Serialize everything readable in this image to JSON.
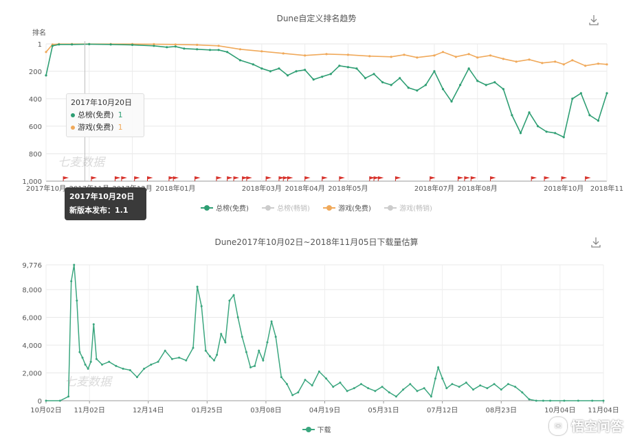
{
  "charts": {
    "rank": {
      "title": "Dune自定义排名趋势",
      "y_axis_name": "排名",
      "download_icon": "download-icon",
      "watermark": "七麦数据",
      "tooltip": {
        "date": "2017年10月20日",
        "rows": [
          {
            "label": "总榜(免费)",
            "value": "1",
            "color": "#2e9e73"
          },
          {
            "label": "游戏(免费)",
            "value": "1",
            "color": "#f0a95a"
          }
        ]
      },
      "event_tooltip": {
        "date": "2017年10月20日",
        "text": "新版本发布：1.1"
      },
      "legend": [
        {
          "label": "总榜(免费)",
          "color": "#2e9e73",
          "active": true
        },
        {
          "label": "总榜(畅销)",
          "color": "#cccccc",
          "active": false
        },
        {
          "label": "游戏(免费)",
          "color": "#f0a95a",
          "active": true
        },
        {
          "label": "游戏(畅销)",
          "color": "#cccccc",
          "active": false
        }
      ]
    },
    "downloads": {
      "title": "Dune2017年10月02日~2018年11月05日下载量估算",
      "download_icon": "download-icon",
      "watermark": "七麦数据",
      "legend": [
        {
          "label": "下载",
          "color": "#3aa67e"
        }
      ]
    }
  },
  "brand": {
    "text": "悟空问答",
    "icon": "brand-logo-icon"
  },
  "chart_data": [
    {
      "type": "line",
      "title": "Dune自定义排名趋势",
      "ylabel": "排名",
      "y_inverted": true,
      "ylim": [
        1,
        1000
      ],
      "y_ticks": [
        "1",
        "200",
        "400",
        "600",
        "800",
        "1,000"
      ],
      "x_ticks": [
        "2017年10月",
        "2017年11月",
        "2017年12月",
        "2018年01月",
        "2018年03月",
        "2018年04月",
        "2018年05月",
        "2018年07月",
        "2018年08月",
        "2018年10月",
        "2018年11"
      ],
      "x_month_index": [
        0,
        1,
        2,
        3,
        5,
        6,
        7,
        9,
        10,
        12,
        13
      ],
      "series": [
        {
          "name": "总榜(免费)",
          "color": "#2e9e73",
          "x": [
            0.0,
            0.15,
            0.3,
            0.6,
            1.0,
            1.5,
            2.0,
            2.5,
            2.8,
            3.0,
            3.2,
            3.5,
            3.8,
            4.0,
            4.2,
            4.5,
            4.8,
            5.0,
            5.2,
            5.4,
            5.6,
            5.8,
            6.0,
            6.2,
            6.4,
            6.6,
            6.8,
            7.0,
            7.2,
            7.4,
            7.6,
            7.8,
            8.0,
            8.2,
            8.4,
            8.6,
            8.8,
            9.0,
            9.2,
            9.4,
            9.6,
            9.8,
            10.0,
            10.2,
            10.4,
            10.6,
            10.8,
            11.0,
            11.2,
            11.4,
            11.6,
            11.8,
            12.0,
            12.2,
            12.4,
            12.6,
            12.8,
            13.0
          ],
          "y": [
            230,
            15,
            5,
            5,
            3,
            5,
            8,
            15,
            25,
            20,
            35,
            40,
            45,
            45,
            60,
            120,
            150,
            180,
            200,
            180,
            230,
            200,
            190,
            260,
            240,
            220,
            160,
            170,
            180,
            250,
            220,
            280,
            300,
            250,
            320,
            340,
            300,
            200,
            330,
            420,
            300,
            180,
            270,
            300,
            280,
            330,
            520,
            650,
            500,
            600,
            640,
            650,
            680,
            400,
            360,
            520,
            560,
            360
          ]
        },
        {
          "name": "游戏(免费)",
          "color": "#f0a95a",
          "x": [
            0.0,
            0.15,
            0.3,
            0.6,
            1.0,
            1.5,
            2.0,
            2.5,
            3.0,
            3.5,
            4.0,
            4.5,
            5.0,
            5.5,
            6.0,
            6.5,
            7.0,
            7.5,
            8.0,
            8.3,
            8.6,
            9.0,
            9.2,
            9.5,
            9.8,
            10.0,
            10.3,
            10.6,
            10.9,
            11.2,
            11.5,
            11.8,
            12.0,
            12.2,
            12.5,
            12.8,
            13.0
          ],
          "y": [
            60,
            5,
            2,
            2,
            2,
            2,
            2,
            3,
            5,
            8,
            15,
            40,
            55,
            70,
            85,
            75,
            80,
            90,
            95,
            80,
            100,
            85,
            60,
            95,
            75,
            100,
            85,
            110,
            130,
            115,
            140,
            130,
            150,
            120,
            160,
            145,
            150
          ]
        }
      ]
    },
    {
      "type": "line",
      "title": "Dune2017年10月02日~2018年11月05日下载量估算",
      "ylim": [
        0,
        9776
      ],
      "y_ticks": [
        "0",
        "2,000",
        "4,000",
        "6,000",
        "8,000",
        "9,776"
      ],
      "x_ticks": [
        "10月02日",
        "11月02日",
        "12月14日",
        "01月25日",
        "03月08日",
        "04月19日",
        "05月31日",
        "07月12日",
        "08月23日",
        "10月04日",
        "11月04日"
      ],
      "x_day_index": [
        0,
        31,
        73,
        115,
        157,
        199,
        241,
        283,
        325,
        367,
        398
      ],
      "series": [
        {
          "name": "下载",
          "color": "#3aa67e",
          "x": [
            0,
            10,
            16,
            18,
            20,
            22,
            24,
            26,
            28,
            30,
            32,
            34,
            36,
            40,
            45,
            50,
            55,
            60,
            65,
            70,
            75,
            80,
            85,
            90,
            95,
            100,
            105,
            108,
            111,
            114,
            117,
            120,
            122,
            125,
            128,
            131,
            134,
            137,
            140,
            143,
            146,
            149,
            152,
            155,
            158,
            161,
            164,
            168,
            172,
            176,
            180,
            185,
            190,
            195,
            200,
            205,
            210,
            215,
            220,
            225,
            230,
            235,
            240,
            245,
            250,
            255,
            260,
            265,
            270,
            275,
            278,
            280,
            283,
            286,
            290,
            295,
            300,
            305,
            310,
            315,
            320,
            325,
            330,
            335,
            340,
            345,
            350,
            355,
            360,
            370,
            380,
            390,
            398
          ],
          "y": [
            0,
            0,
            300,
            8600,
            9776,
            7200,
            3500,
            3100,
            2600,
            2300,
            2800,
            5500,
            3000,
            2600,
            2800,
            2500,
            2300,
            2200,
            1700,
            2300,
            2600,
            2800,
            3600,
            3000,
            3100,
            2900,
            3800,
            8200,
            6800,
            3600,
            3200,
            2900,
            3300,
            4800,
            4200,
            7200,
            7600,
            6000,
            4600,
            3500,
            2400,
            2500,
            3600,
            2900,
            4200,
            5700,
            4600,
            1700,
            1200,
            400,
            600,
            1500,
            1100,
            2100,
            1600,
            1000,
            1300,
            700,
            900,
            1200,
            900,
            700,
            1000,
            600,
            300,
            800,
            1200,
            700,
            900,
            300,
            1600,
            2400,
            1600,
            900,
            1200,
            1000,
            1300,
            800,
            1100,
            900,
            1200,
            800,
            1200,
            1000,
            600,
            100,
            0,
            0,
            0,
            0,
            0,
            0,
            0
          ]
        }
      ]
    }
  ]
}
